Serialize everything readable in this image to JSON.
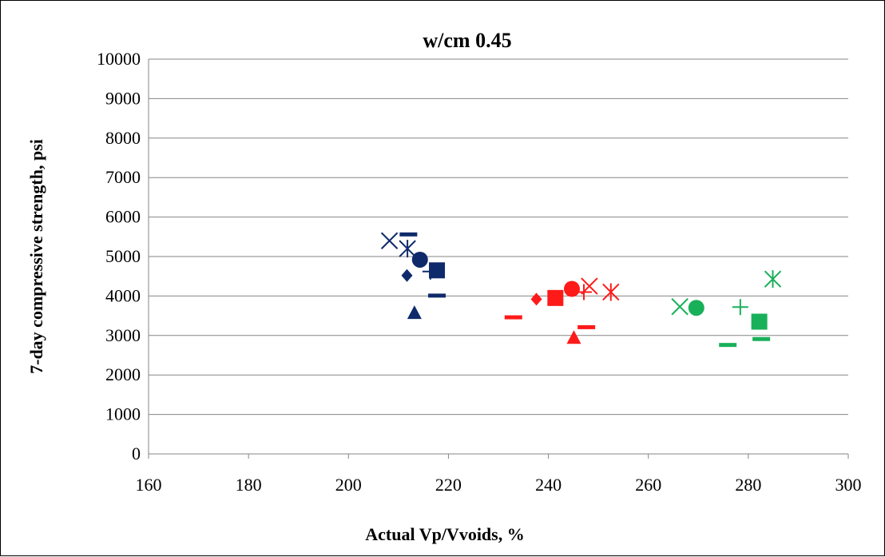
{
  "chart_data": {
    "type": "scatter",
    "title": "w/cm 0.45",
    "xlabel": "Actual Vp/Vvoids, %",
    "ylabel": "7-day compressive strength, psi",
    "xlim": [
      160,
      300
    ],
    "ylim": [
      0,
      10000
    ],
    "xticks": [
      160,
      180,
      200,
      220,
      240,
      260,
      280,
      300
    ],
    "yticks": [
      0,
      1000,
      2000,
      3000,
      4000,
      5000,
      6000,
      7000,
      8000,
      9000,
      10000
    ],
    "x_tick_labels": [
      "160",
      "180",
      "200",
      "220",
      "240",
      "260",
      "280",
      "300"
    ],
    "y_tick_labels": [
      "0",
      "1000",
      "2000",
      "3000",
      "4000",
      "5000",
      "6000",
      "7000",
      "8000",
      "9000",
      "10000"
    ],
    "grid": "horizontal",
    "legend": "none",
    "colors": {
      "navy": "#0f2a6b",
      "red": "#ff1a1a",
      "green": "#19b05a"
    },
    "series": [
      {
        "color": "navy",
        "points": [
          {
            "x": 208.2,
            "y": 5400,
            "marker": "x"
          },
          {
            "x": 211.8,
            "y": 5200,
            "marker": "star"
          },
          {
            "x": 212.0,
            "y": 5550,
            "marker": "dash"
          },
          {
            "x": 214.3,
            "y": 4920,
            "marker": "circle"
          },
          {
            "x": 211.7,
            "y": 4520,
            "marker": "diamond"
          },
          {
            "x": 216.4,
            "y": 4620,
            "marker": "plus"
          },
          {
            "x": 217.7,
            "y": 4650,
            "marker": "square"
          },
          {
            "x": 217.7,
            "y": 4000,
            "marker": "dash"
          },
          {
            "x": 213.2,
            "y": 3580,
            "marker": "triangle"
          }
        ]
      },
      {
        "color": "red",
        "points": [
          {
            "x": 233.0,
            "y": 3450,
            "marker": "dash"
          },
          {
            "x": 237.6,
            "y": 3920,
            "marker": "diamond"
          },
          {
            "x": 241.4,
            "y": 3950,
            "marker": "square"
          },
          {
            "x": 244.7,
            "y": 4180,
            "marker": "circle"
          },
          {
            "x": 247.1,
            "y": 4100,
            "marker": "plus"
          },
          {
            "x": 248.2,
            "y": 4250,
            "marker": "x"
          },
          {
            "x": 252.5,
            "y": 4100,
            "marker": "star"
          },
          {
            "x": 247.6,
            "y": 3200,
            "marker": "dash"
          },
          {
            "x": 245.1,
            "y": 2950,
            "marker": "triangle"
          }
        ]
      },
      {
        "color": "green",
        "points": [
          {
            "x": 266.3,
            "y": 3730,
            "marker": "x"
          },
          {
            "x": 269.6,
            "y": 3700,
            "marker": "circle"
          },
          {
            "x": 278.4,
            "y": 3720,
            "marker": "plus"
          },
          {
            "x": 284.9,
            "y": 4430,
            "marker": "star"
          },
          {
            "x": 282.2,
            "y": 3350,
            "marker": "square"
          },
          {
            "x": 282.6,
            "y": 2900,
            "marker": "dash"
          },
          {
            "x": 275.9,
            "y": 2750,
            "marker": "dash"
          }
        ]
      }
    ]
  }
}
